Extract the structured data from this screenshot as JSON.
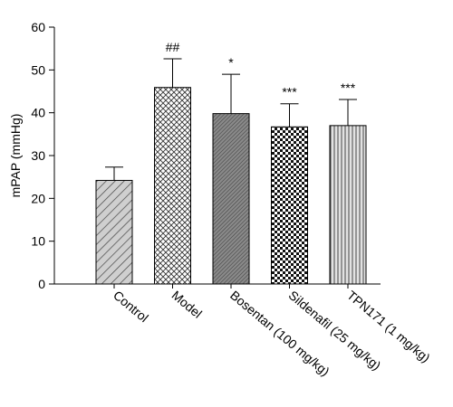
{
  "chart_data": {
    "type": "bar",
    "title": "",
    "xlabel": "",
    "ylabel": "mPAP (mmHg)",
    "ylim": [
      0,
      60
    ],
    "yticks": [
      0,
      10,
      20,
      30,
      40,
      50,
      60
    ],
    "grid": false,
    "categories": [
      "Control",
      "Model",
      "Bosentan (100 mg/kg)",
      "Sildenafil (25 mg/kg)",
      "TPN171 (1 mg/kg)"
    ],
    "values": [
      24.2,
      45.9,
      39.8,
      36.7,
      37.0
    ],
    "errors": [
      3.1,
      6.7,
      9.2,
      5.4,
      6.1
    ],
    "significance": [
      "",
      "##",
      "*",
      "***",
      "***"
    ],
    "patterns": [
      "diagonal-hatch",
      "crosshatch",
      "dense-diagonal",
      "checkerboard",
      "vertical-lines"
    ]
  }
}
